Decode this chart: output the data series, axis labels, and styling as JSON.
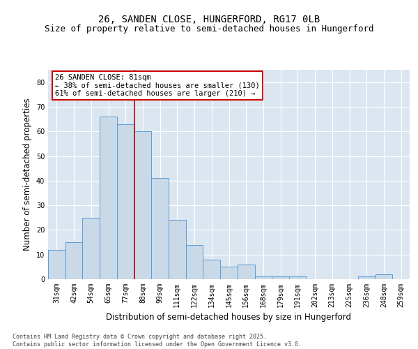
{
  "title": "26, SANDEN CLOSE, HUNGERFORD, RG17 0LB",
  "subtitle": "Size of property relative to semi-detached houses in Hungerford",
  "xlabel": "Distribution of semi-detached houses by size in Hungerford",
  "ylabel": "Number of semi-detached properties",
  "categories": [
    "31sqm",
    "42sqm",
    "54sqm",
    "65sqm",
    "77sqm",
    "88sqm",
    "99sqm",
    "111sqm",
    "122sqm",
    "134sqm",
    "145sqm",
    "156sqm",
    "168sqm",
    "179sqm",
    "191sqm",
    "202sqm",
    "213sqm",
    "225sqm",
    "236sqm",
    "248sqm",
    "259sqm"
  ],
  "values": [
    12,
    15,
    25,
    66,
    63,
    60,
    41,
    24,
    14,
    8,
    5,
    6,
    1,
    1,
    1,
    0,
    0,
    0,
    1,
    2,
    0
  ],
  "bar_color": "#c9d9e8",
  "bar_edge_color": "#5b9bd5",
  "red_line_x": 4.5,
  "annotation_text": "26 SANDEN CLOSE: 81sqm\n← 38% of semi-detached houses are smaller (130)\n61% of semi-detached houses are larger (210) →",
  "annotation_box_color": "#ffffff",
  "annotation_box_edge": "#cc0000",
  "ylim": [
    0,
    85
  ],
  "yticks": [
    0,
    10,
    20,
    30,
    40,
    50,
    60,
    70,
    80
  ],
  "background_color": "#dce6f1",
  "grid_color": "#ffffff",
  "footer_text": "Contains HM Land Registry data © Crown copyright and database right 2025.\nContains public sector information licensed under the Open Government Licence v3.0.",
  "title_fontsize": 10,
  "subtitle_fontsize": 9,
  "axis_label_fontsize": 8.5,
  "tick_fontsize": 7,
  "annotation_fontsize": 7.5,
  "footer_fontsize": 6
}
